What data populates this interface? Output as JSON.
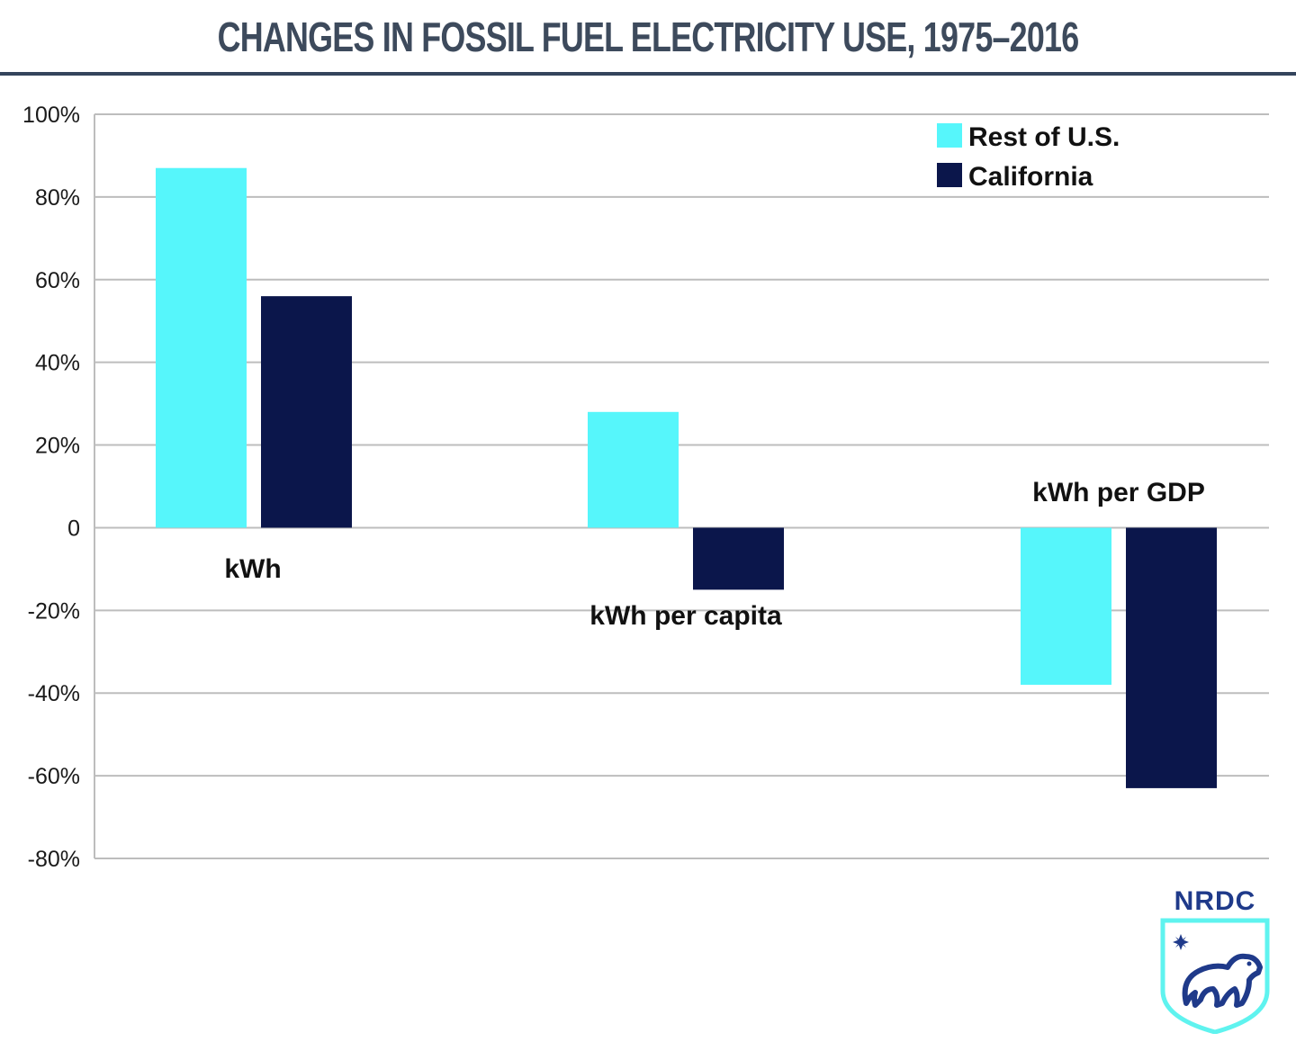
{
  "title": "CHANGES IN FOSSIL FUEL ELECTRICITY USE, 1975–2016",
  "logo": {
    "text": "NRDC",
    "icon": "bear-star-shield-icon"
  },
  "colors": {
    "rest_of_us": "#56f6fb",
    "california": "#0b164b",
    "title": "#3d4a5c",
    "gridline": "#bdbdbd"
  },
  "chart_data": {
    "type": "bar",
    "title": "CHANGES IN FOSSIL FUEL ELECTRICITY USE, 1975–2016",
    "categories": [
      "kWh",
      "kWh per capita",
      "kWh per GDP"
    ],
    "series": [
      {
        "name": "Rest of U.S.",
        "values": [
          87,
          28,
          -38
        ]
      },
      {
        "name": "California",
        "values": [
          56,
          -15,
          -63
        ]
      }
    ],
    "ylim": [
      -80,
      100
    ],
    "yticks": [
      100,
      80,
      60,
      40,
      20,
      0,
      -20,
      -40,
      -60,
      -80
    ],
    "ytick_labels": [
      "100%",
      "80%",
      "60%",
      "40%",
      "20%",
      "0",
      "-20%",
      "-40%",
      "-60%",
      "-80%"
    ],
    "xlabel": "",
    "ylabel": "",
    "grid": true,
    "legend_position": "top-right"
  }
}
